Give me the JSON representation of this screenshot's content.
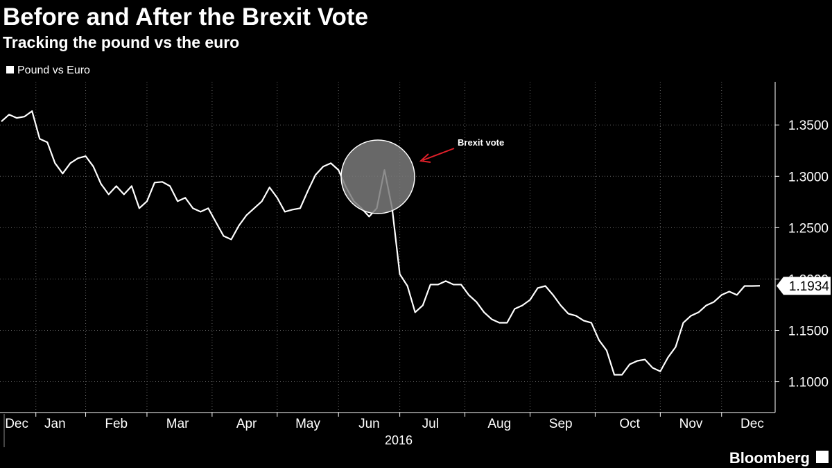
{
  "chart_data": {
    "type": "line",
    "title": "Before and After the Brexit Vote",
    "subtitle": "Tracking the pound vs the euro",
    "xlabel": "2016",
    "source": "Bloomberg",
    "annotations": [
      {
        "text": "Brexit vote"
      }
    ],
    "grid": true,
    "categories": [
      null,
      null,
      "Dec",
      null,
      null,
      null,
      null,
      "Jan",
      null,
      null,
      null,
      null,
      null,
      null,
      null,
      "Feb",
      null,
      null,
      null,
      null,
      null,
      null,
      null,
      "Mar",
      null,
      null,
      null,
      null,
      null,
      null,
      null,
      null,
      "Apr",
      null,
      null,
      null,
      null,
      null,
      null,
      null,
      "May",
      null,
      null,
      null,
      null,
      null,
      null,
      null,
      "Jun",
      null,
      null,
      null,
      null,
      null,
      null,
      null,
      "Jul",
      null,
      null,
      null,
      null,
      null,
      null,
      null,
      null,
      "Aug",
      null,
      null,
      null,
      null,
      null,
      null,
      null,
      "Sep",
      null,
      null,
      null,
      null,
      null,
      null,
      null,
      null,
      "Oct",
      null,
      null,
      null,
      null,
      null,
      null,
      null,
      "Nov",
      null,
      null,
      null,
      null,
      null,
      null,
      null,
      "Dec",
      null
    ],
    "series": [
      {
        "name": "Pound vs Euro",
        "color": "#ffffff",
        "values": [
          1.3534,
          1.3601,
          1.3568,
          1.3581,
          1.3635,
          1.3365,
          1.3331,
          1.3128,
          1.3027,
          1.3128,
          1.3176,
          1.3196,
          1.3095,
          1.2926,
          1.2824,
          1.2905,
          1.2824,
          1.2905,
          1.2689,
          1.2757,
          1.2939,
          1.2946,
          1.2905,
          1.2757,
          1.2791,
          1.2689,
          1.2655,
          1.2689,
          1.2554,
          1.2419,
          1.2385,
          1.252,
          1.2622,
          1.2689,
          1.2757,
          1.2892,
          1.2791,
          1.2655,
          1.2676,
          1.2689,
          1.2858,
          1.3014,
          1.3095,
          1.3128,
          1.3061,
          1.2892,
          1.2757,
          1.2689,
          1.2608,
          1.2689,
          1.3061,
          1.2689,
          1.2047,
          1.1932,
          1.1676,
          1.1743,
          1.1946,
          1.1946,
          1.198,
          1.1946,
          1.1946,
          1.1845,
          1.1777,
          1.1676,
          1.1608,
          1.1574,
          1.1574,
          1.1709,
          1.1743,
          1.1797,
          1.1912,
          1.1932,
          1.1845,
          1.1743,
          1.1662,
          1.1642,
          1.1595,
          1.1574,
          1.1405,
          1.1304,
          1.1068,
          1.1068,
          1.1169,
          1.1203,
          1.1216,
          1.1135,
          1.1101,
          1.1236,
          1.1338,
          1.1574,
          1.1642,
          1.1676,
          1.1743,
          1.1777,
          1.1845,
          1.1878,
          1.1845,
          1.1932,
          1.1932,
          1.1934
        ]
      }
    ],
    "ylim": [
      1.07,
      1.392
    ],
    "yticks": [
      {
        "value": 1.1,
        "label": "1.1000"
      },
      {
        "value": 1.15,
        "label": "1.1500"
      },
      {
        "value": 1.2,
        "label": "1.2000"
      },
      {
        "value": 1.25,
        "label": "1.2500"
      },
      {
        "value": 1.3,
        "label": "1.3000"
      },
      {
        "value": 1.35,
        "label": "1.3500"
      }
    ]
  }
}
